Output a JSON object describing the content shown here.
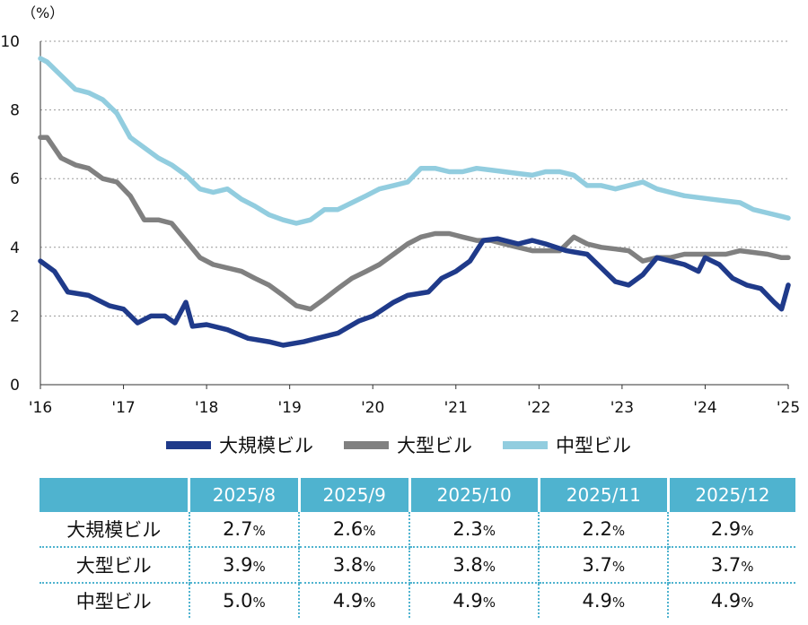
{
  "chart_data": {
    "type": "line",
    "unit_label": "（%）",
    "ylim": [
      0,
      10
    ],
    "y_ticks": [
      "0",
      "2",
      "4",
      "6",
      "8",
      "10"
    ],
    "x_ticks": [
      "'16",
      "'17",
      "'18",
      "'19",
      "'20",
      "'21",
      "'22",
      "'23",
      "'24",
      "'25"
    ],
    "x_tick_years": [
      2016,
      2017,
      2018,
      2019,
      2020,
      2021,
      2022,
      2023,
      2024,
      2025
    ],
    "grid": "horizontal-dotted",
    "legend_position": "bottom",
    "series": [
      {
        "name": "大規模ビル",
        "color": "#1F3A8A",
        "points": [
          [
            2016.0,
            3.6
          ],
          [
            2016.17,
            3.3
          ],
          [
            2016.33,
            2.7
          ],
          [
            2016.58,
            2.6
          ],
          [
            2016.83,
            2.3
          ],
          [
            2017.0,
            2.2
          ],
          [
            2017.17,
            1.8
          ],
          [
            2017.33,
            2.0
          ],
          [
            2017.5,
            2.0
          ],
          [
            2017.62,
            1.8
          ],
          [
            2017.75,
            2.4
          ],
          [
            2017.83,
            1.7
          ],
          [
            2018.0,
            1.75
          ],
          [
            2018.25,
            1.6
          ],
          [
            2018.5,
            1.35
          ],
          [
            2018.75,
            1.25
          ],
          [
            2018.92,
            1.15
          ],
          [
            2019.17,
            1.25
          ],
          [
            2019.33,
            1.35
          ],
          [
            2019.58,
            1.5
          ],
          [
            2019.83,
            1.85
          ],
          [
            2020.0,
            2.0
          ],
          [
            2020.25,
            2.4
          ],
          [
            2020.42,
            2.6
          ],
          [
            2020.67,
            2.7
          ],
          [
            2020.83,
            3.1
          ],
          [
            2021.0,
            3.3
          ],
          [
            2021.17,
            3.6
          ],
          [
            2021.33,
            4.2
          ],
          [
            2021.5,
            4.25
          ],
          [
            2021.75,
            4.1
          ],
          [
            2021.92,
            4.2
          ],
          [
            2022.08,
            4.1
          ],
          [
            2022.33,
            3.9
          ],
          [
            2022.58,
            3.8
          ],
          [
            2022.75,
            3.4
          ],
          [
            2022.92,
            3.0
          ],
          [
            2023.08,
            2.9
          ],
          [
            2023.25,
            3.2
          ],
          [
            2023.42,
            3.7
          ],
          [
            2023.58,
            3.6
          ],
          [
            2023.75,
            3.5
          ],
          [
            2023.92,
            3.3
          ],
          [
            2024.0,
            3.7
          ],
          [
            2024.17,
            3.5
          ],
          [
            2024.33,
            3.1
          ],
          [
            2024.5,
            2.9
          ],
          [
            2024.67,
            2.8
          ],
          [
            2024.83,
            2.4
          ],
          [
            2024.92,
            2.2
          ],
          [
            2025.0,
            2.9
          ]
        ]
      },
      {
        "name": "大型ビル",
        "color": "#808080",
        "points": [
          [
            2016.0,
            7.2
          ],
          [
            2016.08,
            7.2
          ],
          [
            2016.25,
            6.6
          ],
          [
            2016.42,
            6.4
          ],
          [
            2016.58,
            6.3
          ],
          [
            2016.75,
            6.0
          ],
          [
            2016.92,
            5.9
          ],
          [
            2017.08,
            5.5
          ],
          [
            2017.25,
            4.8
          ],
          [
            2017.42,
            4.8
          ],
          [
            2017.58,
            4.7
          ],
          [
            2017.75,
            4.2
          ],
          [
            2017.92,
            3.7
          ],
          [
            2018.08,
            3.5
          ],
          [
            2018.25,
            3.4
          ],
          [
            2018.42,
            3.3
          ],
          [
            2018.58,
            3.1
          ],
          [
            2018.75,
            2.9
          ],
          [
            2018.92,
            2.6
          ],
          [
            2019.08,
            2.3
          ],
          [
            2019.25,
            2.2
          ],
          [
            2019.42,
            2.5
          ],
          [
            2019.58,
            2.8
          ],
          [
            2019.75,
            3.1
          ],
          [
            2019.92,
            3.3
          ],
          [
            2020.08,
            3.5
          ],
          [
            2020.25,
            3.8
          ],
          [
            2020.42,
            4.1
          ],
          [
            2020.58,
            4.3
          ],
          [
            2020.75,
            4.4
          ],
          [
            2020.92,
            4.4
          ],
          [
            2021.08,
            4.3
          ],
          [
            2021.25,
            4.2
          ],
          [
            2021.42,
            4.2
          ],
          [
            2021.58,
            4.1
          ],
          [
            2021.75,
            4.0
          ],
          [
            2021.92,
            3.9
          ],
          [
            2022.08,
            3.9
          ],
          [
            2022.25,
            3.9
          ],
          [
            2022.42,
            4.3
          ],
          [
            2022.58,
            4.1
          ],
          [
            2022.75,
            4.0
          ],
          [
            2022.92,
            3.95
          ],
          [
            2023.08,
            3.9
          ],
          [
            2023.25,
            3.6
          ],
          [
            2023.42,
            3.7
          ],
          [
            2023.58,
            3.7
          ],
          [
            2023.75,
            3.8
          ],
          [
            2023.92,
            3.8
          ],
          [
            2024.08,
            3.8
          ],
          [
            2024.25,
            3.8
          ],
          [
            2024.42,
            3.9
          ],
          [
            2024.58,
            3.85
          ],
          [
            2024.75,
            3.8
          ],
          [
            2024.92,
            3.7
          ],
          [
            2025.0,
            3.7
          ]
        ]
      },
      {
        "name": "中型ビル",
        "color": "#92CDDF",
        "points": [
          [
            2016.0,
            9.5
          ],
          [
            2016.08,
            9.4
          ],
          [
            2016.25,
            9.0
          ],
          [
            2016.42,
            8.6
          ],
          [
            2016.58,
            8.5
          ],
          [
            2016.75,
            8.3
          ],
          [
            2016.92,
            7.9
          ],
          [
            2017.08,
            7.2
          ],
          [
            2017.25,
            6.9
          ],
          [
            2017.42,
            6.6
          ],
          [
            2017.58,
            6.4
          ],
          [
            2017.75,
            6.1
          ],
          [
            2017.92,
            5.7
          ],
          [
            2018.08,
            5.6
          ],
          [
            2018.25,
            5.7
          ],
          [
            2018.42,
            5.4
          ],
          [
            2018.58,
            5.2
          ],
          [
            2018.75,
            4.95
          ],
          [
            2018.92,
            4.8
          ],
          [
            2019.08,
            4.7
          ],
          [
            2019.25,
            4.8
          ],
          [
            2019.42,
            5.1
          ],
          [
            2019.58,
            5.1
          ],
          [
            2019.75,
            5.3
          ],
          [
            2019.92,
            5.5
          ],
          [
            2020.08,
            5.7
          ],
          [
            2020.25,
            5.8
          ],
          [
            2020.42,
            5.9
          ],
          [
            2020.58,
            6.3
          ],
          [
            2020.75,
            6.3
          ],
          [
            2020.92,
            6.2
          ],
          [
            2021.08,
            6.2
          ],
          [
            2021.25,
            6.3
          ],
          [
            2021.42,
            6.25
          ],
          [
            2021.58,
            6.2
          ],
          [
            2021.75,
            6.15
          ],
          [
            2021.92,
            6.1
          ],
          [
            2022.08,
            6.2
          ],
          [
            2022.25,
            6.2
          ],
          [
            2022.42,
            6.1
          ],
          [
            2022.58,
            5.8
          ],
          [
            2022.75,
            5.8
          ],
          [
            2022.92,
            5.7
          ],
          [
            2023.08,
            5.8
          ],
          [
            2023.25,
            5.9
          ],
          [
            2023.42,
            5.7
          ],
          [
            2023.58,
            5.6
          ],
          [
            2023.75,
            5.5
          ],
          [
            2023.92,
            5.45
          ],
          [
            2024.08,
            5.4
          ],
          [
            2024.25,
            5.35
          ],
          [
            2024.42,
            5.3
          ],
          [
            2024.58,
            5.1
          ],
          [
            2024.75,
            5.0
          ],
          [
            2024.92,
            4.9
          ],
          [
            2025.0,
            4.85
          ]
        ]
      }
    ]
  },
  "table": {
    "headers": [
      "2025/8",
      "2025/9",
      "2025/10",
      "2025/11",
      "2025/12"
    ],
    "unit": "%",
    "rows": [
      {
        "label": "大規模ビル",
        "values": [
          "2.7",
          "2.6",
          "2.3",
          "2.2",
          "2.9"
        ]
      },
      {
        "label": "大型ビル",
        "values": [
          "3.9",
          "3.8",
          "3.8",
          "3.7",
          "3.7"
        ]
      },
      {
        "label": "中型ビル",
        "values": [
          "5.0",
          "4.9",
          "4.9",
          "4.9",
          "4.9"
        ]
      }
    ],
    "header_color": "#4FB3CF"
  }
}
